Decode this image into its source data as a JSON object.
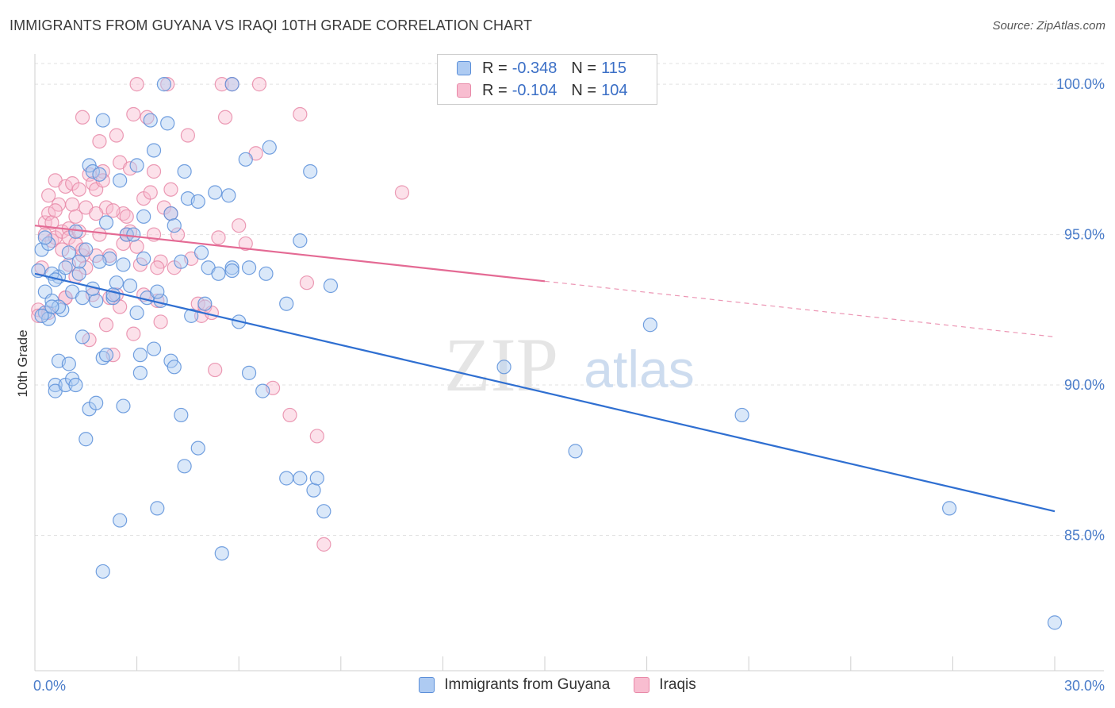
{
  "title": "IMMIGRANTS FROM GUYANA VS IRAQI 10TH GRADE CORRELATION CHART",
  "source": "Source: ZipAtlas.com",
  "watermark": {
    "zip": "ZIP",
    "atlas": "atlas"
  },
  "legend": {
    "rows": [
      {
        "r_label": "R = ",
        "r_value": "-0.348",
        "n_label": "N = ",
        "n_value": "115"
      },
      {
        "r_label": "R = ",
        "r_value": "-0.104",
        "n_label": "N = ",
        "n_value": "104"
      }
    ]
  },
  "colors": {
    "blue_fill": "#aecbf2",
    "blue_stroke": "#5b8fd9",
    "blue_line": "#2f6fd1",
    "pink_fill": "#f8bdd0",
    "pink_stroke": "#e889a8",
    "pink_line": "#e46a94",
    "grid": "#e2e2e2",
    "tick_label": "#4a7cc9"
  },
  "chart_data": {
    "type": "scatter",
    "title": "IMMIGRANTS FROM GUYANA VS IRAQI 10TH GRADE CORRELATION CHART",
    "xlabel": "",
    "ylabel": "10th Grade",
    "x_ticks": [
      "0.0%",
      "30.0%"
    ],
    "y_ticks": [
      "100.0%",
      "95.0%",
      "90.0%",
      "85.0%"
    ],
    "xlim": [
      0,
      30
    ],
    "ylim": [
      80.5,
      100.9
    ],
    "grid": true,
    "series": [
      {
        "name": "Immigrants from Guyana",
        "color_key": "blue",
        "trend": {
          "x0": 0,
          "y0": 93.7,
          "x1": 30,
          "y1": 85.8,
          "solid_until": 30
        },
        "points": [
          [
            0.1,
            93.8
          ],
          [
            0.2,
            94.5
          ],
          [
            0.3,
            93.1
          ],
          [
            0.3,
            92.4
          ],
          [
            0.4,
            92.2
          ],
          [
            0.5,
            92.8
          ],
          [
            0.6,
            90.0
          ],
          [
            0.6,
            89.8
          ],
          [
            0.7,
            93.6
          ],
          [
            0.7,
            90.8
          ],
          [
            0.8,
            92.5
          ],
          [
            0.9,
            90.0
          ],
          [
            1.0,
            90.7
          ],
          [
            1.1,
            90.2
          ],
          [
            1.2,
            90.0
          ],
          [
            1.2,
            95.1
          ],
          [
            1.3,
            94.1
          ],
          [
            1.4,
            91.6
          ],
          [
            1.5,
            88.2
          ],
          [
            1.6,
            89.2
          ],
          [
            1.6,
            97.3
          ],
          [
            1.7,
            97.1
          ],
          [
            1.8,
            89.4
          ],
          [
            1.8,
            92.8
          ],
          [
            1.9,
            97.0
          ],
          [
            2.0,
            98.8
          ],
          [
            2.0,
            90.9
          ],
          [
            2.1,
            91.0
          ],
          [
            2.2,
            94.2
          ],
          [
            2.3,
            92.9
          ],
          [
            2.4,
            93.4
          ],
          [
            2.5,
            85.5
          ],
          [
            2.5,
            96.8
          ],
          [
            2.6,
            89.3
          ],
          [
            2.7,
            95.0
          ],
          [
            2.9,
            95.0
          ],
          [
            3.0,
            92.4
          ],
          [
            3.0,
            97.3
          ],
          [
            3.1,
            91.0
          ],
          [
            3.1,
            90.4
          ],
          [
            3.2,
            95.6
          ],
          [
            3.3,
            92.9
          ],
          [
            3.4,
            98.8
          ],
          [
            3.5,
            97.8
          ],
          [
            3.5,
            91.2
          ],
          [
            3.6,
            85.9
          ],
          [
            3.7,
            92.8
          ],
          [
            3.8,
            100.0
          ],
          [
            3.9,
            98.7
          ],
          [
            4.0,
            95.7
          ],
          [
            4.0,
            90.8
          ],
          [
            4.1,
            90.6
          ],
          [
            4.3,
            94.1
          ],
          [
            4.3,
            89.0
          ],
          [
            4.4,
            97.1
          ],
          [
            4.4,
            87.3
          ],
          [
            4.5,
            96.2
          ],
          [
            4.6,
            92.3
          ],
          [
            4.8,
            96.1
          ],
          [
            4.8,
            87.9
          ],
          [
            4.9,
            94.4
          ],
          [
            5.0,
            92.7
          ],
          [
            5.1,
            93.9
          ],
          [
            5.3,
            96.4
          ],
          [
            5.4,
            93.7
          ],
          [
            5.5,
            84.4
          ],
          [
            5.7,
            96.3
          ],
          [
            5.8,
            93.9
          ],
          [
            5.8,
            93.8
          ],
          [
            5.8,
            100.0
          ],
          [
            6.0,
            92.1
          ],
          [
            6.2,
            97.5
          ],
          [
            6.3,
            93.9
          ],
          [
            6.3,
            90.4
          ],
          [
            6.7,
            89.8
          ],
          [
            6.8,
            93.7
          ],
          [
            6.9,
            97.9
          ],
          [
            7.4,
            92.7
          ],
          [
            7.4,
            86.9
          ],
          [
            7.8,
            86.9
          ],
          [
            7.8,
            94.8
          ],
          [
            8.1,
            97.1
          ],
          [
            8.2,
            86.5
          ],
          [
            8.3,
            86.9
          ],
          [
            8.5,
            85.8
          ],
          [
            8.7,
            93.3
          ],
          [
            13.8,
            90.6
          ],
          [
            15.9,
            87.8
          ],
          [
            18.1,
            92.0
          ],
          [
            20.8,
            89.0
          ],
          [
            26.9,
            85.9
          ],
          [
            30.0,
            82.1
          ],
          [
            0.2,
            92.3
          ],
          [
            0.4,
            94.7
          ],
          [
            0.5,
            93.7
          ],
          [
            0.6,
            93.5
          ],
          [
            0.7,
            92.6
          ],
          [
            0.9,
            93.9
          ],
          [
            1.0,
            94.4
          ],
          [
            1.1,
            93.1
          ],
          [
            1.3,
            93.7
          ],
          [
            1.4,
            92.9
          ],
          [
            1.5,
            94.5
          ],
          [
            1.7,
            93.2
          ],
          [
            1.9,
            94.1
          ],
          [
            2.1,
            95.4
          ],
          [
            2.3,
            93.0
          ],
          [
            2.6,
            94.0
          ],
          [
            2.8,
            93.3
          ],
          [
            3.2,
            94.2
          ],
          [
            3.6,
            93.1
          ],
          [
            4.1,
            95.3
          ],
          [
            2.0,
            83.8
          ],
          [
            0.5,
            92.6
          ],
          [
            0.3,
            94.9
          ]
        ]
      },
      {
        "name": "Iraqis",
        "color_key": "pink",
        "trend": {
          "x0": 0,
          "y0": 95.3,
          "x1": 30,
          "y1": 91.6,
          "solid_until": 15
        },
        "points": [
          [
            0.1,
            92.5
          ],
          [
            0.1,
            92.3
          ],
          [
            0.2,
            93.9
          ],
          [
            0.3,
            95.0
          ],
          [
            0.3,
            95.4
          ],
          [
            0.4,
            95.7
          ],
          [
            0.4,
            96.3
          ],
          [
            0.5,
            95.4
          ],
          [
            0.5,
            94.8
          ],
          [
            0.6,
            96.8
          ],
          [
            0.6,
            94.9
          ],
          [
            0.7,
            96.0
          ],
          [
            0.8,
            95.1
          ],
          [
            0.8,
            94.5
          ],
          [
            0.9,
            96.6
          ],
          [
            0.9,
            92.9
          ],
          [
            1.0,
            95.2
          ],
          [
            1.0,
            94.9
          ],
          [
            1.1,
            96.7
          ],
          [
            1.1,
            96.0
          ],
          [
            1.2,
            95.6
          ],
          [
            1.2,
            94.7
          ],
          [
            1.3,
            95.1
          ],
          [
            1.3,
            96.5
          ],
          [
            1.4,
            98.9
          ],
          [
            1.4,
            94.3
          ],
          [
            1.5,
            95.9
          ],
          [
            1.5,
            93.9
          ],
          [
            1.6,
            97.0
          ],
          [
            1.6,
            91.5
          ],
          [
            1.7,
            96.7
          ],
          [
            1.7,
            93.0
          ],
          [
            1.8,
            96.5
          ],
          [
            1.8,
            94.3
          ],
          [
            1.9,
            95.0
          ],
          [
            1.9,
            98.1
          ],
          [
            2.0,
            97.1
          ],
          [
            2.0,
            96.8
          ],
          [
            2.1,
            95.9
          ],
          [
            2.1,
            92.0
          ],
          [
            2.2,
            94.3
          ],
          [
            2.2,
            92.9
          ],
          [
            2.3,
            91.0
          ],
          [
            2.4,
            93.0
          ],
          [
            2.4,
            98.3
          ],
          [
            2.5,
            97.4
          ],
          [
            2.5,
            92.6
          ],
          [
            2.6,
            95.7
          ],
          [
            2.6,
            94.7
          ],
          [
            2.7,
            95.6
          ],
          [
            2.8,
            95.1
          ],
          [
            2.8,
            97.2
          ],
          [
            2.9,
            99.0
          ],
          [
            2.9,
            91.7
          ],
          [
            3.0,
            100.0
          ],
          [
            3.1,
            94.0
          ],
          [
            3.2,
            96.2
          ],
          [
            3.2,
            93.0
          ],
          [
            3.3,
            98.9
          ],
          [
            3.4,
            96.4
          ],
          [
            3.5,
            97.1
          ],
          [
            3.5,
            95.0
          ],
          [
            3.6,
            92.8
          ],
          [
            3.7,
            92.1
          ],
          [
            3.7,
            94.1
          ],
          [
            3.8,
            95.9
          ],
          [
            3.9,
            100.0
          ],
          [
            4.0,
            96.5
          ],
          [
            4.0,
            95.7
          ],
          [
            4.1,
            93.9
          ],
          [
            4.2,
            95.0
          ],
          [
            4.5,
            98.3
          ],
          [
            4.6,
            94.2
          ],
          [
            4.8,
            92.7
          ],
          [
            4.9,
            92.3
          ],
          [
            5.0,
            92.6
          ],
          [
            5.2,
            92.4
          ],
          [
            5.3,
            90.5
          ],
          [
            5.4,
            94.9
          ],
          [
            5.5,
            100.0
          ],
          [
            5.6,
            98.9
          ],
          [
            5.8,
            100.0
          ],
          [
            6.0,
            95.3
          ],
          [
            6.2,
            94.7
          ],
          [
            6.5,
            97.7
          ],
          [
            6.6,
            100.0
          ],
          [
            7.0,
            89.9
          ],
          [
            7.5,
            89.0
          ],
          [
            7.8,
            99.0
          ],
          [
            8.0,
            93.4
          ],
          [
            8.3,
            88.3
          ],
          [
            8.5,
            84.7
          ],
          [
            10.8,
            96.4
          ],
          [
            1.2,
            93.6
          ],
          [
            0.9,
            92.9
          ],
          [
            0.4,
            92.4
          ],
          [
            0.6,
            95.8
          ],
          [
            1.0,
            94.0
          ],
          [
            1.4,
            94.5
          ],
          [
            1.8,
            95.7
          ],
          [
            2.3,
            95.8
          ],
          [
            3.0,
            94.6
          ],
          [
            3.6,
            93.9
          ],
          [
            2.7,
            95.0
          ]
        ]
      }
    ]
  },
  "bottom_legend": [
    {
      "label": "Immigrants from Guyana"
    },
    {
      "label": "Iraqis"
    }
  ]
}
